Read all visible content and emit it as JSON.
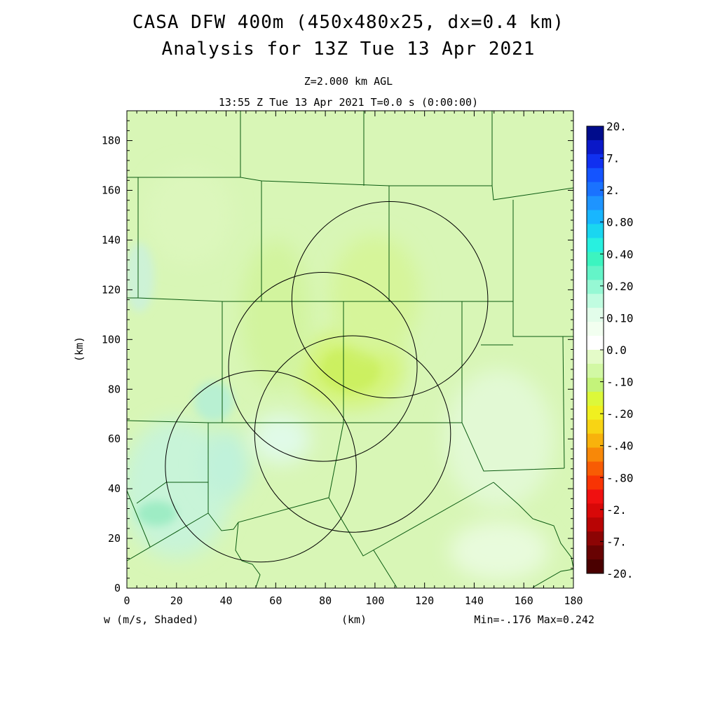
{
  "title_line1": "CASA DFW 400m (450x480x25, dx=0.4 km)",
  "title_line2": "Analysis for 13Z Tue 13 Apr 2021",
  "subtitle_line1": "Z=2.000 km AGL",
  "subtitle_line2": "13:55 Z Tue 13 Apr 2021   T=0.0 s (0:00:00)",
  "footer": {
    "field_label": "w (m/s, Shaded)",
    "minmax": "Min=-.176 Max=0.242"
  },
  "chart_data": {
    "type": "heatmap",
    "variable": "w",
    "units": "m/s",
    "title": "CASA DFW 400m (450x480x25, dx=0.4 km)",
    "xlabel": "(km)",
    "ylabel": "(km)",
    "xlim": [
      0,
      180
    ],
    "ylim": [
      0,
      192
    ],
    "x_ticks": [
      0,
      20,
      40,
      60,
      80,
      100,
      120,
      140,
      160,
      180
    ],
    "y_ticks": [
      0,
      20,
      40,
      60,
      80,
      100,
      120,
      140,
      160,
      180
    ],
    "min": -0.176,
    "max": 0.242,
    "colorbar": {
      "labels": [
        "20.",
        "7.",
        "2.",
        "0.80",
        "0.40",
        "0.20",
        "0.10",
        "0.0",
        "-.10",
        "-.20",
        "-.40",
        "-.80",
        "-2.",
        "-7.",
        "-20."
      ],
      "colors": [
        "#000c8c",
        "#0a18c8",
        "#1030f0",
        "#1454ff",
        "#1a72ff",
        "#1e94ff",
        "#18b6ff",
        "#1ad6f0",
        "#28f0e0",
        "#3cf4c0",
        "#64f4c8",
        "#96f8d4",
        "#c0fce0",
        "#e2fdea",
        "#f2fff0",
        "#ffffff",
        "#e4fbc8",
        "#d2f8a4",
        "#c4f37a",
        "#dcf83a",
        "#f0f020",
        "#f8d414",
        "#f8b20c",
        "#f88808",
        "#f85c04",
        "#f83404",
        "#f01010",
        "#d80808",
        "#b80404",
        "#8c0404",
        "#680202",
        "#4a0000"
      ]
    },
    "radar_rings": [
      {
        "center": [
          54,
          49
        ],
        "radius": 38.5
      },
      {
        "center": [
          79,
          89
        ],
        "radius": 38
      },
      {
        "center": [
          91,
          62
        ],
        "radius": 39.5
      },
      {
        "center": [
          106,
          116
        ],
        "radius": 39.5
      }
    ],
    "field_description": "Mostly light green (about -0.05 m/s) with a weak downdraft maximum (~-0.15) near x=80-100 km, y=75-100 km, and weak updraft patches (+0.1 to +0.2) in the southwest near x=0-50 km, y=20-70 km."
  }
}
